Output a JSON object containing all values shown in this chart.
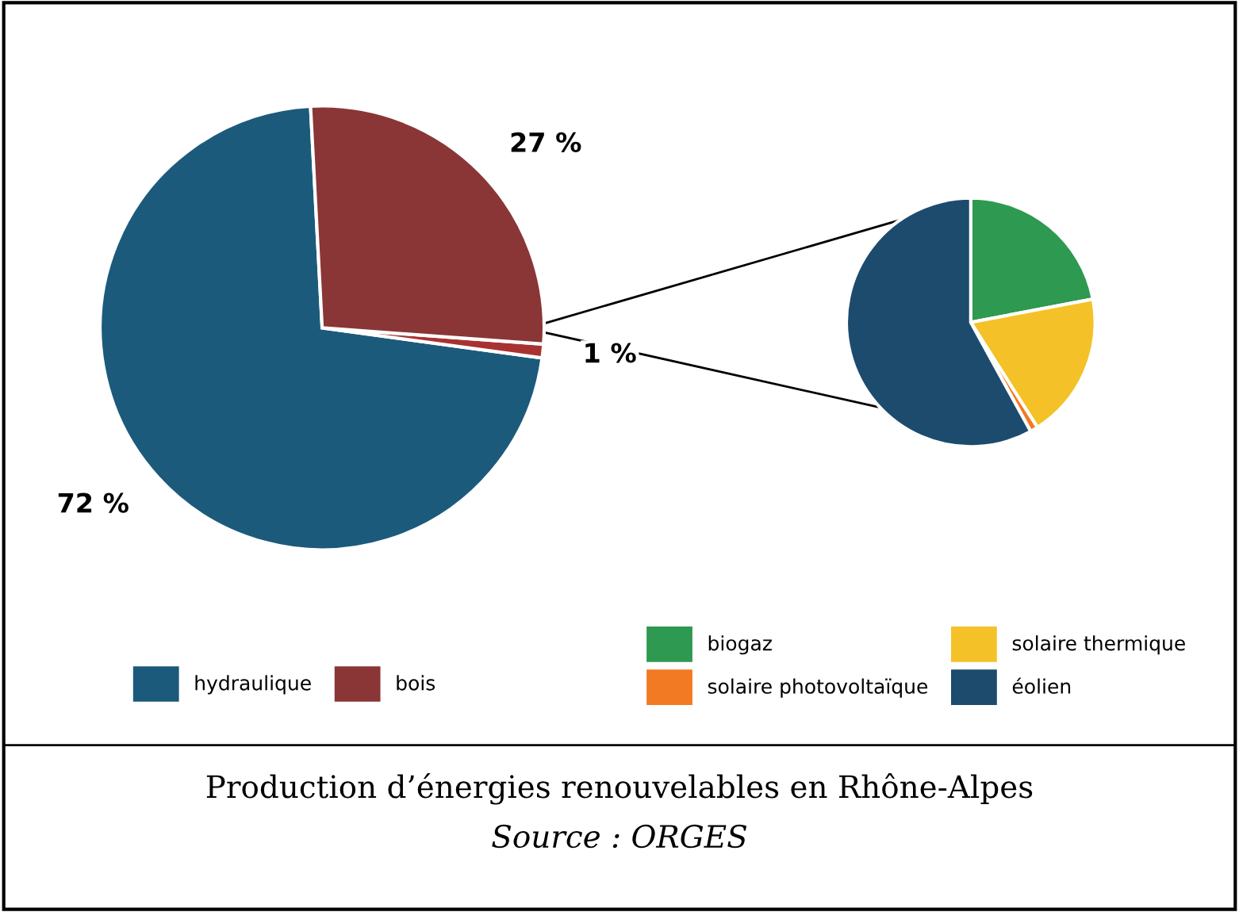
{
  "chart_data": [
    {
      "type": "pie",
      "title": "Production d’énergies renouvelables en Rhône-Alpes",
      "annotations": [
        "Source : ORGES"
      ],
      "categories": [
        "hydraulique",
        null,
        "bois"
      ],
      "values": [
        72,
        1,
        27
      ],
      "value_labels": [
        "72 %",
        "1 %",
        "27 %"
      ],
      "colors": [
        "#1c5a7c",
        "#a83232",
        "#8a3636"
      ],
      "legend": "bottom"
    },
    {
      "type": "pie",
      "categories": [
        "biogaz",
        "solaire thermique",
        "solaire photovoltaïque",
        "éolien"
      ],
      "values": [
        22,
        19,
        1,
        58
      ],
      "colors": [
        "#2e9950",
        "#f4c228",
        "#f27a22",
        "#1d4b6e"
      ],
      "legend": "bottom"
    }
  ]
}
